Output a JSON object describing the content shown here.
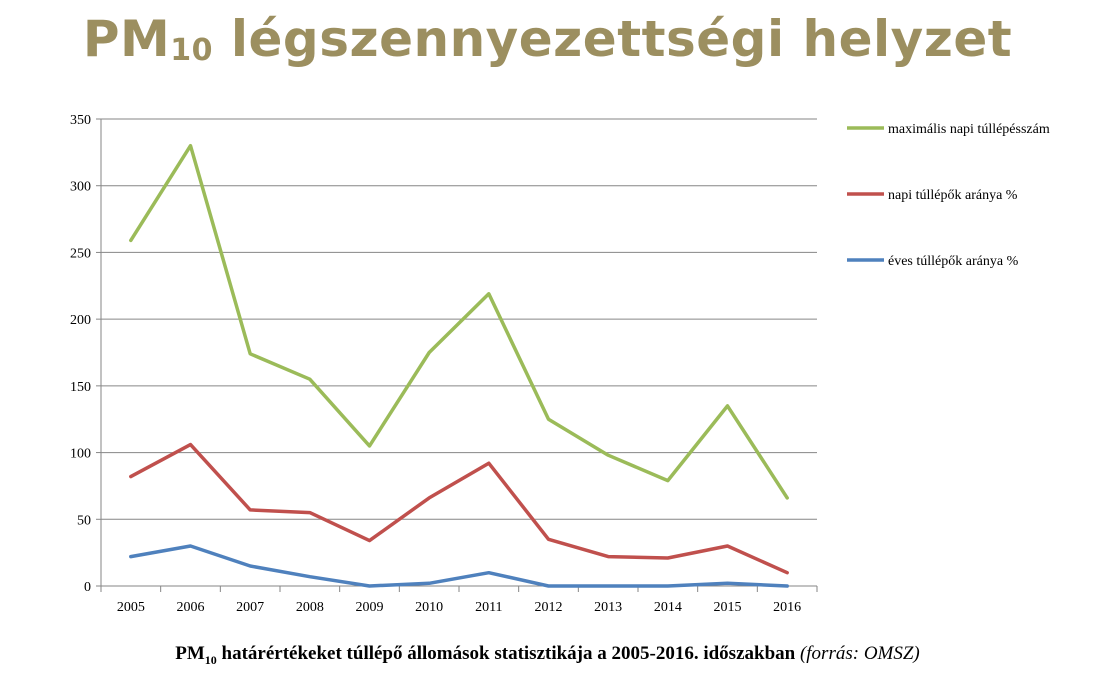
{
  "slide": {
    "title_main": "PM",
    "title_sub": "10",
    "title_rest": " légszennyezettségi helyzet"
  },
  "caption": {
    "main": "PM",
    "sub": "10",
    "rest": " határértékeket túllépő állomások statisztikája a 2005-2016. időszakban ",
    "source": "(forrás: OMSZ)"
  },
  "chart_data": {
    "type": "line",
    "categories": [
      "2005",
      "2006",
      "2007",
      "2008",
      "2009",
      "2010",
      "2011",
      "2012",
      "2013",
      "2014",
      "2015",
      "2016"
    ],
    "yticks": [
      0,
      50,
      100,
      150,
      200,
      250,
      300,
      350
    ],
    "ylim": [
      0,
      350
    ],
    "grid": true,
    "legend_position": "right",
    "series": [
      {
        "name": "maximális napi túllépésszám",
        "color": "#9bbb59",
        "values": [
          259,
          330,
          174,
          155,
          105,
          175,
          219,
          125,
          98,
          79,
          135,
          66
        ]
      },
      {
        "name": "napi túllépők aránya %",
        "color": "#c0504d",
        "values": [
          82,
          106,
          57,
          55,
          34,
          66,
          92,
          35,
          22,
          21,
          30,
          10
        ]
      },
      {
        "name": "éves túllépők aránya %",
        "color": "#4f81bd",
        "values": [
          22,
          30,
          15,
          7,
          0,
          2,
          10,
          0,
          0,
          0,
          2,
          0
        ]
      }
    ]
  }
}
